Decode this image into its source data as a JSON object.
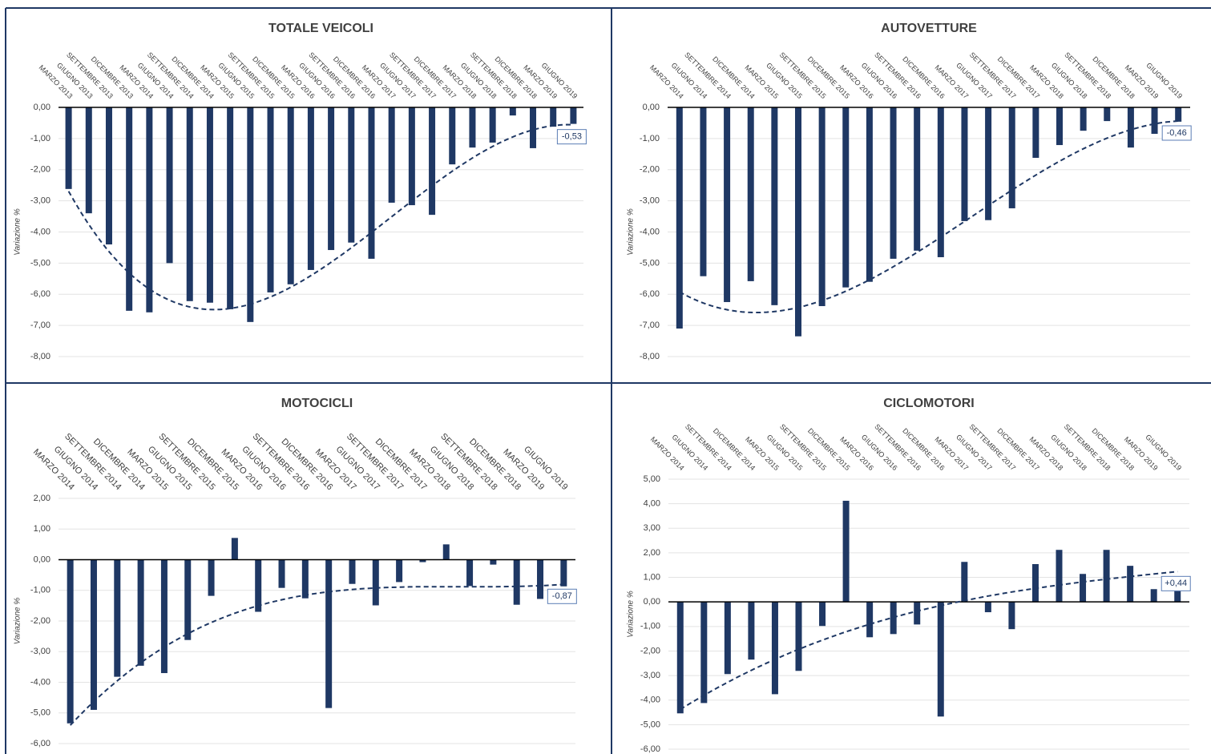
{
  "chart_data": [
    {
      "type": "bar",
      "title": "TOTALE VEICOLI",
      "y_label": "Variazione %",
      "color": "#1f3864",
      "grid": true,
      "trendline": {
        "order": 3
      },
      "annotation": "-0,53",
      "categories": [
        "MARZO 2013",
        "GIUGNO 2013",
        "SETTEMBRE 2013",
        "DICEMBRE 2013",
        "MARZO 2014",
        "GIUGNO 2014",
        "SETTEMBRE 2014",
        "DICEMBRE 2014",
        "MARZO 2015",
        "GIUGNO 2015",
        "SETTEMBRE 2015",
        "DICEMBRE 2015",
        "MARZO 2016",
        "GIUGNO 2016",
        "SETTEMBRE 2016",
        "DICEMBRE 2016",
        "MARZO 2017",
        "GIUGNO 2017",
        "SETTEMBRE 2017",
        "DICEMBRE 2017",
        "MARZO 2018",
        "GIUGNO 2018",
        "SETTEMBRE 2018",
        "DICEMBRE 2018",
        "MARZO 2019",
        "GIUGNO 2019"
      ],
      "values": [
        -2.62,
        -3.4,
        -4.4,
        -6.53,
        -6.58,
        -5.0,
        -6.22,
        -6.27,
        -6.48,
        -6.89,
        -5.94,
        -5.68,
        -5.22,
        -4.58,
        -4.34,
        -4.86,
        -3.06,
        -3.14,
        -3.45,
        -1.83,
        -1.29,
        -1.13,
        -0.26,
        -1.31,
        -0.62,
        -0.53
      ],
      "ylim": [
        -8,
        0
      ],
      "yticks": [
        {
          "value": 0,
          "label": "0,00"
        },
        {
          "value": -1,
          "label": "-1,00"
        },
        {
          "value": -2,
          "label": "-2,00"
        },
        {
          "value": -3,
          "label": "-3,00"
        },
        {
          "value": -4,
          "label": "-4,00"
        },
        {
          "value": -5,
          "label": "-5,00"
        },
        {
          "value": -6,
          "label": "-6,00"
        },
        {
          "value": -7,
          "label": "-7,00"
        },
        {
          "value": -8,
          "label": "-8,00"
        }
      ]
    },
    {
      "type": "bar",
      "title": "AUTOVETTURE",
      "y_label": "Variazione %",
      "color": "#1f3864",
      "grid": true,
      "trendline": {
        "order": 3
      },
      "annotation": "-0,46",
      "categories": [
        "MARZO 2014",
        "GIUGNO 2014",
        "SETTEMBRE 2014",
        "DICEMBRE 2014",
        "MARZO 2015",
        "GIUGNO 2015",
        "SETTEMBRE 2015",
        "DICEMBRE 2015",
        "MARZO 2016",
        "GIUGNO 2016",
        "SETTEMBRE 2016",
        "DICEMBRE 2016",
        "MARZO 2017",
        "GIUGNO 2017",
        "SETTEMBRE 2017",
        "DICEMBRE 2017",
        "MARZO 2018",
        "GIUGNO 2018",
        "SETTEMBRE 2018",
        "DICEMBRE 2018",
        "MARZO 2019",
        "GIUGNO 2019"
      ],
      "values": [
        -7.1,
        -5.42,
        -6.25,
        -5.58,
        -6.35,
        -7.35,
        -6.38,
        -5.78,
        -5.6,
        -4.86,
        -4.6,
        -4.81,
        -3.65,
        -3.62,
        -3.24,
        -1.62,
        -1.21,
        -0.75,
        -0.44,
        -1.29,
        -0.85,
        -0.46
      ],
      "ylim": [
        -8,
        0
      ],
      "yticks": [
        {
          "value": 0,
          "label": "0,00"
        },
        {
          "value": -1,
          "label": "-1,00"
        },
        {
          "value": -2,
          "label": "-2,00"
        },
        {
          "value": -3,
          "label": "-3,00"
        },
        {
          "value": -4,
          "label": "-4,00"
        },
        {
          "value": -5,
          "label": "-5,00"
        },
        {
          "value": -6,
          "label": "-6,00"
        },
        {
          "value": -7,
          "label": "-7,00"
        },
        {
          "value": -8,
          "label": "-8,00"
        }
      ]
    },
    {
      "type": "bar",
      "title": "MOTOCICLI",
      "y_label": "Variazione %",
      "color": "#1f3864",
      "grid": true,
      "trendline": {
        "order": 3
      },
      "annotation": "-0,87",
      "categories": [
        "MARZO 2014",
        "GIUGNO 2014",
        "SETTEMBRE 2014",
        "DICEMBRE 2014",
        "MARZO 2015",
        "GIUGNO 2015",
        "SETTEMBRE 2015",
        "DICEMBRE 2015",
        "MARZO 2016",
        "GIUGNO 2016",
        "SETTEMBRE 2016",
        "DICEMBRE 2016",
        "MARZO 2017",
        "GIUGNO 2017",
        "SETTEMBRE 2017",
        "DICEMBRE 2017",
        "MARZO 2018",
        "GIUGNO 2018",
        "SETTEMBRE 2018",
        "DICEMBRE 2018",
        "MARZO 2019",
        "GIUGNO 2019"
      ],
      "values": [
        -5.34,
        -4.9,
        -3.82,
        -3.46,
        -3.7,
        -2.62,
        -1.18,
        0.71,
        -1.7,
        -0.92,
        -1.26,
        -4.84,
        -0.79,
        -1.49,
        -0.73,
        -0.08,
        0.5,
        -0.86,
        -0.16,
        -1.47,
        -1.28,
        -0.87
      ],
      "ylim": [
        -6,
        2
      ],
      "yticks": [
        {
          "value": 2,
          "label": "2,00"
        },
        {
          "value": 1,
          "label": "1,00"
        },
        {
          "value": 0,
          "label": "0,00"
        },
        {
          "value": -1,
          "label": "-1,00"
        },
        {
          "value": -2,
          "label": "-2,00"
        },
        {
          "value": -3,
          "label": "-3,00"
        },
        {
          "value": -4,
          "label": "-4,00"
        },
        {
          "value": -5,
          "label": "-5,00"
        },
        {
          "value": -6,
          "label": "-6,00"
        }
      ]
    },
    {
      "type": "bar",
      "title": "CICLOMOTORI",
      "y_label": "Variazione %",
      "color": "#1f3864",
      "grid": true,
      "trendline": {
        "order": 3
      },
      "annotation": "+0,44",
      "categories": [
        "MARZO 2014",
        "GIUGNO 2014",
        "SETTEMBRE 2014",
        "DICEMBRE 2014",
        "MARZO 2015",
        "GIUGNO 2015",
        "SETTEMBRE 2015",
        "DICEMBRE 2015",
        "MARZO 2016",
        "GIUGNO 2016",
        "SETTEMBRE 2016",
        "DICEMBRE 2016",
        "MARZO 2017",
        "GIUGNO 2017",
        "SETTEMBRE 2017",
        "DICEMBRE 2017",
        "MARZO 2018",
        "GIUGNO 2018",
        "SETTEMBRE 2018",
        "DICEMBRE 2018",
        "MARZO 2019",
        "GIUGNO 2019"
      ],
      "values": [
        -4.54,
        -4.12,
        -2.94,
        -2.35,
        -3.76,
        -2.81,
        -0.98,
        4.12,
        -1.44,
        -1.31,
        -0.92,
        -4.67,
        1.63,
        -0.42,
        -1.11,
        1.54,
        2.12,
        1.14,
        2.12,
        1.47,
        0.52,
        0.44
      ],
      "ylim": [
        -6,
        5
      ],
      "yticks": [
        {
          "value": 5,
          "label": "5,00"
        },
        {
          "value": 4,
          "label": "4,00"
        },
        {
          "value": 3,
          "label": "3,00"
        },
        {
          "value": 2,
          "label": "2,00"
        },
        {
          "value": 1,
          "label": "1,00"
        },
        {
          "value": 0,
          "label": "0,00"
        },
        {
          "value": -1,
          "label": "-1,00"
        },
        {
          "value": -2,
          "label": "-2,00"
        },
        {
          "value": -3,
          "label": "-3,00"
        },
        {
          "value": -4,
          "label": "-4,00"
        },
        {
          "value": -5,
          "label": "-5,00"
        },
        {
          "value": -6,
          "label": "-6,00"
        }
      ]
    }
  ]
}
